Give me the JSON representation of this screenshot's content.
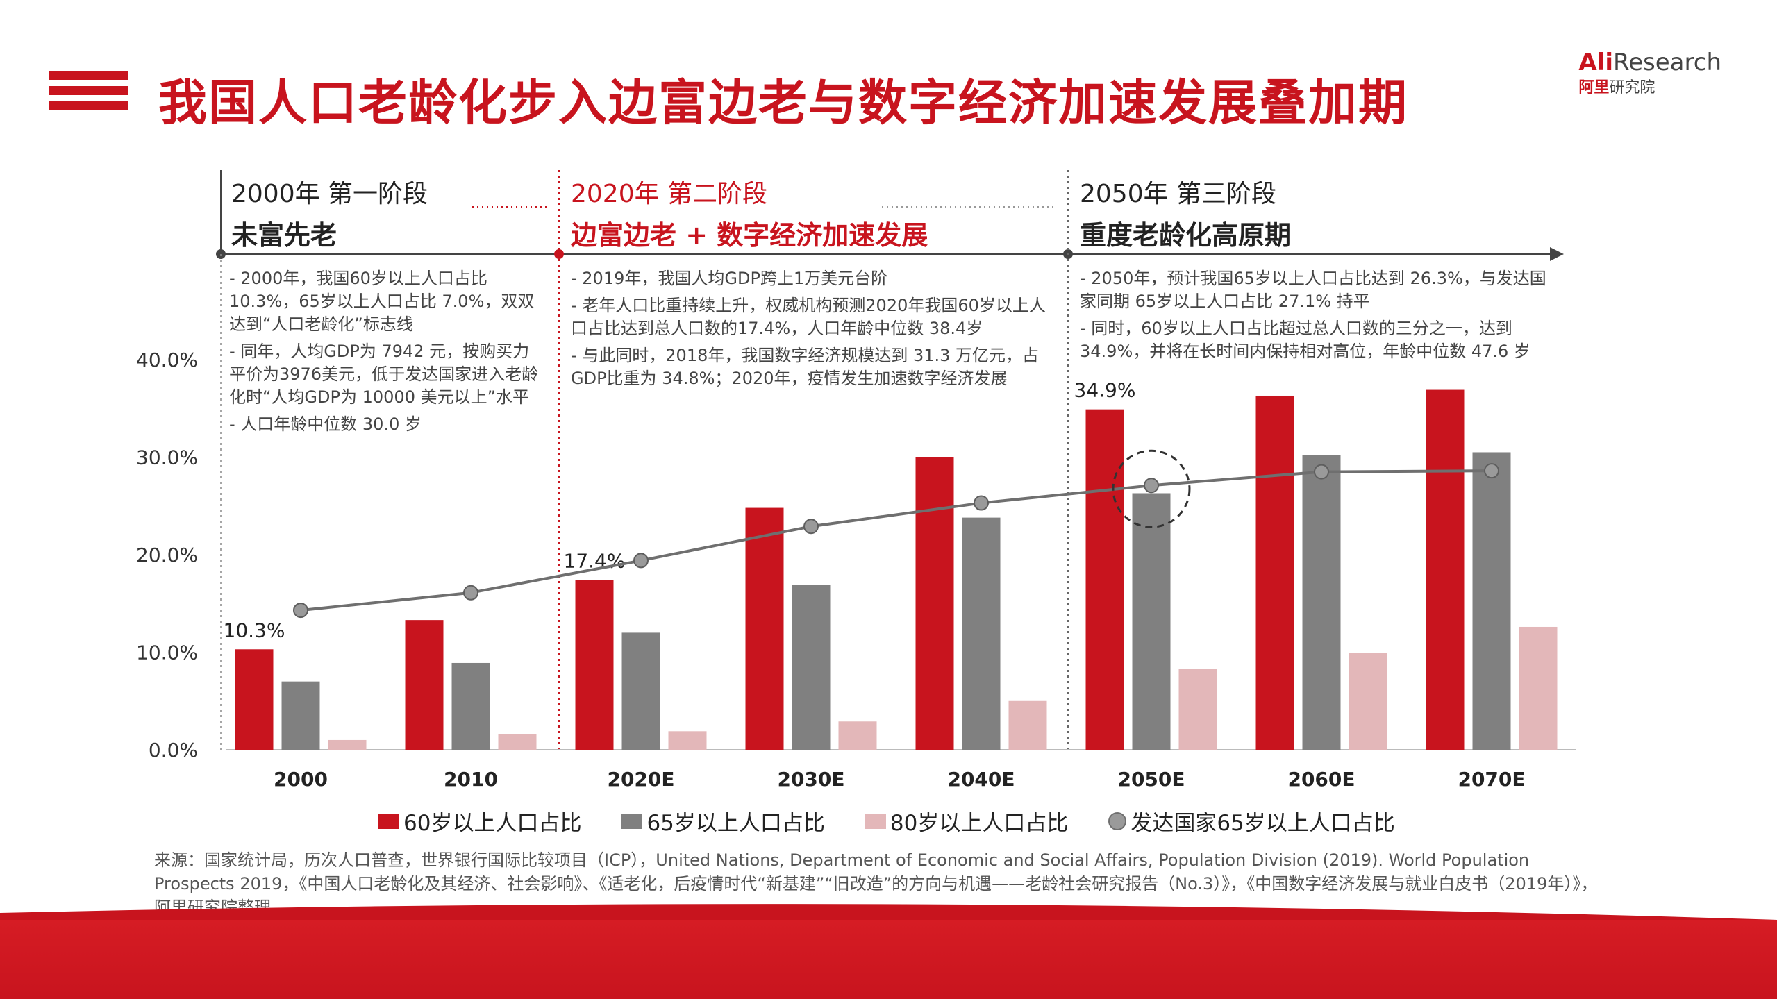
{
  "title": "我国人口老龄化步入边富边老与数字经济加速发展叠加期",
  "brand": {
    "top_a": "Ali",
    "top_b": "Research",
    "bottom_a": "阿里",
    "bottom_b": "研究院"
  },
  "stages": [
    {
      "line1": "2000年 第一阶段",
      "line2": "未富先老",
      "notes": [
        "- 2000年，我国60岁以上人口占比10.3%，65岁以上人口占比 7.0%，双双达到“人口老龄化”标志线",
        "- 同年，人均GDP为 7942 元，按购买力平价为3976美元，低于发达国家进入老龄化时“人均GDP为 10000 美元以上”水平",
        "- 人口年龄中位数 30.0 岁"
      ]
    },
    {
      "line1": "2020年 第二阶段",
      "line2": "边富边老 + 数字经济加速发展",
      "notes": [
        "- 2019年，我国人均GDP跨上1万美元台阶",
        "- 老年人口比重持续上升，权威机构预测2020年我国60岁以上人口占比达到总人口数的17.4%，人口年龄中位数 38.4岁",
        "- 与此同时，2018年，我国数字经济规模达到 31.3 万亿元，占GDP比重为 34.8%；2020年，疫情发生加速数字经济发展"
      ]
    },
    {
      "line1": "2050年 第三阶段",
      "line2": "重度老龄化高原期",
      "notes": [
        "- 2050年，预计我国65岁以上人口占比达到 26.3%，与发达国家同期 65岁以上人口占比 27.1% 持平",
        "- 同时，60岁以上人口占比超过总人口数的三分之一，达到34.9%，并将在长时间内保持相对高位，年龄中位数 47.6 岁"
      ]
    }
  ],
  "chart_data": {
    "type": "bar",
    "categories": [
      "2000",
      "2010",
      "2020E",
      "2030E",
      "2040E",
      "2050E",
      "2060E",
      "2070E"
    ],
    "series": [
      {
        "name": "60岁以上人口占比",
        "color": "#c8141e",
        "values": [
          10.3,
          13.3,
          17.4,
          24.8,
          30.0,
          34.9,
          36.3,
          36.9
        ]
      },
      {
        "name": "65岁以上人口占比",
        "color": "#808080",
        "values": [
          7.0,
          8.9,
          12.0,
          16.9,
          23.8,
          26.3,
          30.2,
          30.5
        ]
      },
      {
        "name": "80岁以上人口占比",
        "color": "#e3b7b9",
        "values": [
          1.0,
          1.6,
          1.9,
          2.9,
          5.0,
          8.3,
          9.9,
          12.6
        ]
      },
      {
        "name": "发达国家65岁以上人口占比",
        "color": "#6f6f6f",
        "type": "line",
        "values": [
          14.3,
          16.1,
          19.4,
          22.9,
          25.3,
          27.1,
          28.5,
          28.6
        ]
      }
    ],
    "ylim": [
      0,
      40
    ],
    "yticks": [
      "0.0%",
      "10.0%",
      "20.0%",
      "30.0%",
      "40.0%"
    ],
    "data_labels": [
      {
        "series": 0,
        "index": 0,
        "text": "10.3%"
      },
      {
        "series": 0,
        "index": 2,
        "text": "17.4%"
      },
      {
        "series": 0,
        "index": 5,
        "text": "34.9%"
      }
    ]
  },
  "source": "来源：国家统计局，历次人口普查，世界银行国际比较项目（ICP），United Nations, Department of Economic and Social Affairs, Population Division (2019). World Population Prospects 2019，《中国人口老龄化及其经济、社会影响》、《适老化，后疫情时代“新基建”“旧改造”的方向与机遇——老龄社会研究报告（No.3）》，《中国数字经济发展与就业白皮书（2019年）》，阿里研究院整理"
}
